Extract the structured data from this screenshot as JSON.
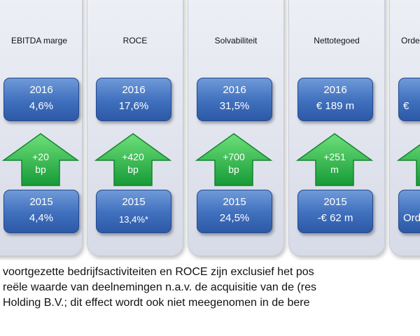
{
  "cards": [
    {
      "title": "EBITDA marge",
      "top_year": "2016",
      "top_value": "4,6%",
      "change_line1": "+20",
      "change_line2": "bp",
      "bottom_year": "2015",
      "bottom_value": "4,4%"
    },
    {
      "title": "ROCE",
      "top_year": "2016",
      "top_value": "17,6%",
      "change_line1": "+420",
      "change_line2": "bp",
      "bottom_year": "2015",
      "bottom_value": "13,4%*"
    },
    {
      "title": "Solvabiliteit",
      "top_year": "2016",
      "top_value": "31,5%",
      "change_line1": "+700",
      "change_line2": "bp",
      "bottom_year": "2015",
      "bottom_value": "24,5%"
    },
    {
      "title": "Nettotegoed",
      "top_year": "2016",
      "top_value": "€ 189 m",
      "change_line1": "+251",
      "change_line2": "m",
      "bottom_year": "2015",
      "bottom_value": "-€ 62 m"
    },
    {
      "title": "Orde",
      "top_year": "",
      "top_value": "€",
      "change_line1": "",
      "change_line2": "",
      "bottom_year": "",
      "bottom_value": "Ord"
    }
  ],
  "footnote": {
    "line1": "voortgezette bedrijfsactiviteiten en ROCE zijn exclusief het pos",
    "line2": "reële waarde van deelnemingen n.a.v. de acquisitie van de (res",
    "line3": "Holding B.V.; dit effect wordt ook niet meegenomen in de bere"
  },
  "colors": {
    "box_blue": "#3f6fbd",
    "arrow_green": "#2bb54a",
    "card_bg": "#dfe3ee"
  }
}
